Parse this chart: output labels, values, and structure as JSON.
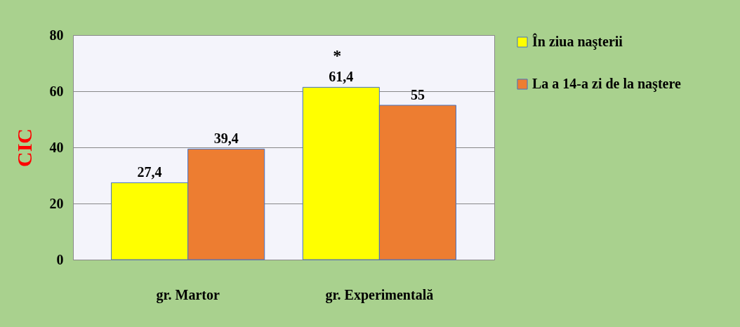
{
  "chart_data": {
    "type": "bar",
    "ylabel": "CIC",
    "categories": [
      "gr.  Martor",
      "gr. Experimentală"
    ],
    "series": [
      {
        "name": "În ziua naşterii",
        "color": "#ffff00",
        "values": [
          27.4,
          61.4
        ],
        "value_labels": [
          "27,4",
          "61,4"
        ]
      },
      {
        "name": "La a 14-a zi de la naştere",
        "color": "#ed7d31",
        "values": [
          39.4,
          55
        ],
        "value_labels": [
          "39,4",
          "55"
        ]
      }
    ],
    "ylim": [
      0,
      80
    ],
    "yticks": [
      0,
      20,
      40,
      60,
      80
    ],
    "grid": "y",
    "legend": "right",
    "annotations": [
      {
        "text": "*",
        "x": "gr. Experimentală",
        "y": 61.4
      }
    ]
  }
}
